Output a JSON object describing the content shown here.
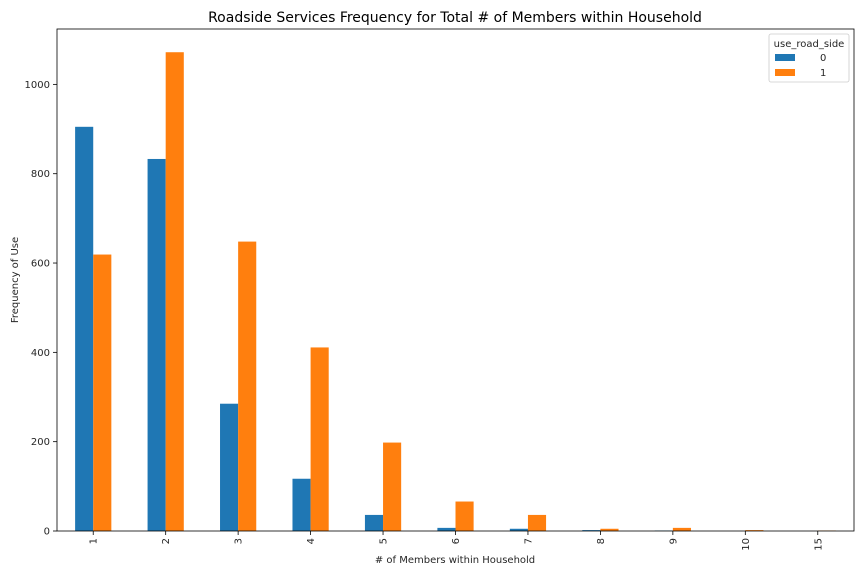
{
  "chart_data": {
    "type": "bar",
    "title": "Roadside Services Frequency for Total # of Members within Household",
    "xlabel": "# of Members within Household",
    "ylabel": "Frequency of Use",
    "categories": [
      "1",
      "2",
      "3",
      "4",
      "5",
      "6",
      "7",
      "8",
      "9",
      "10",
      "15"
    ],
    "series": [
      {
        "name": "0",
        "color": "#1f77b4",
        "values": [
          905,
          833,
          285,
          117,
          36,
          7,
          5,
          2,
          1,
          0,
          0
        ]
      },
      {
        "name": "1",
        "color": "#ff7f0e",
        "values": [
          619,
          1072,
          648,
          411,
          198,
          66,
          36,
          5,
          7,
          2,
          1
        ]
      }
    ],
    "ylim": [
      0,
      1124
    ],
    "yticks": [
      0,
      200,
      400,
      600,
      800,
      1000
    ],
    "legend": {
      "title": "use_road_side",
      "placement": "top-right"
    },
    "grid": false
  }
}
